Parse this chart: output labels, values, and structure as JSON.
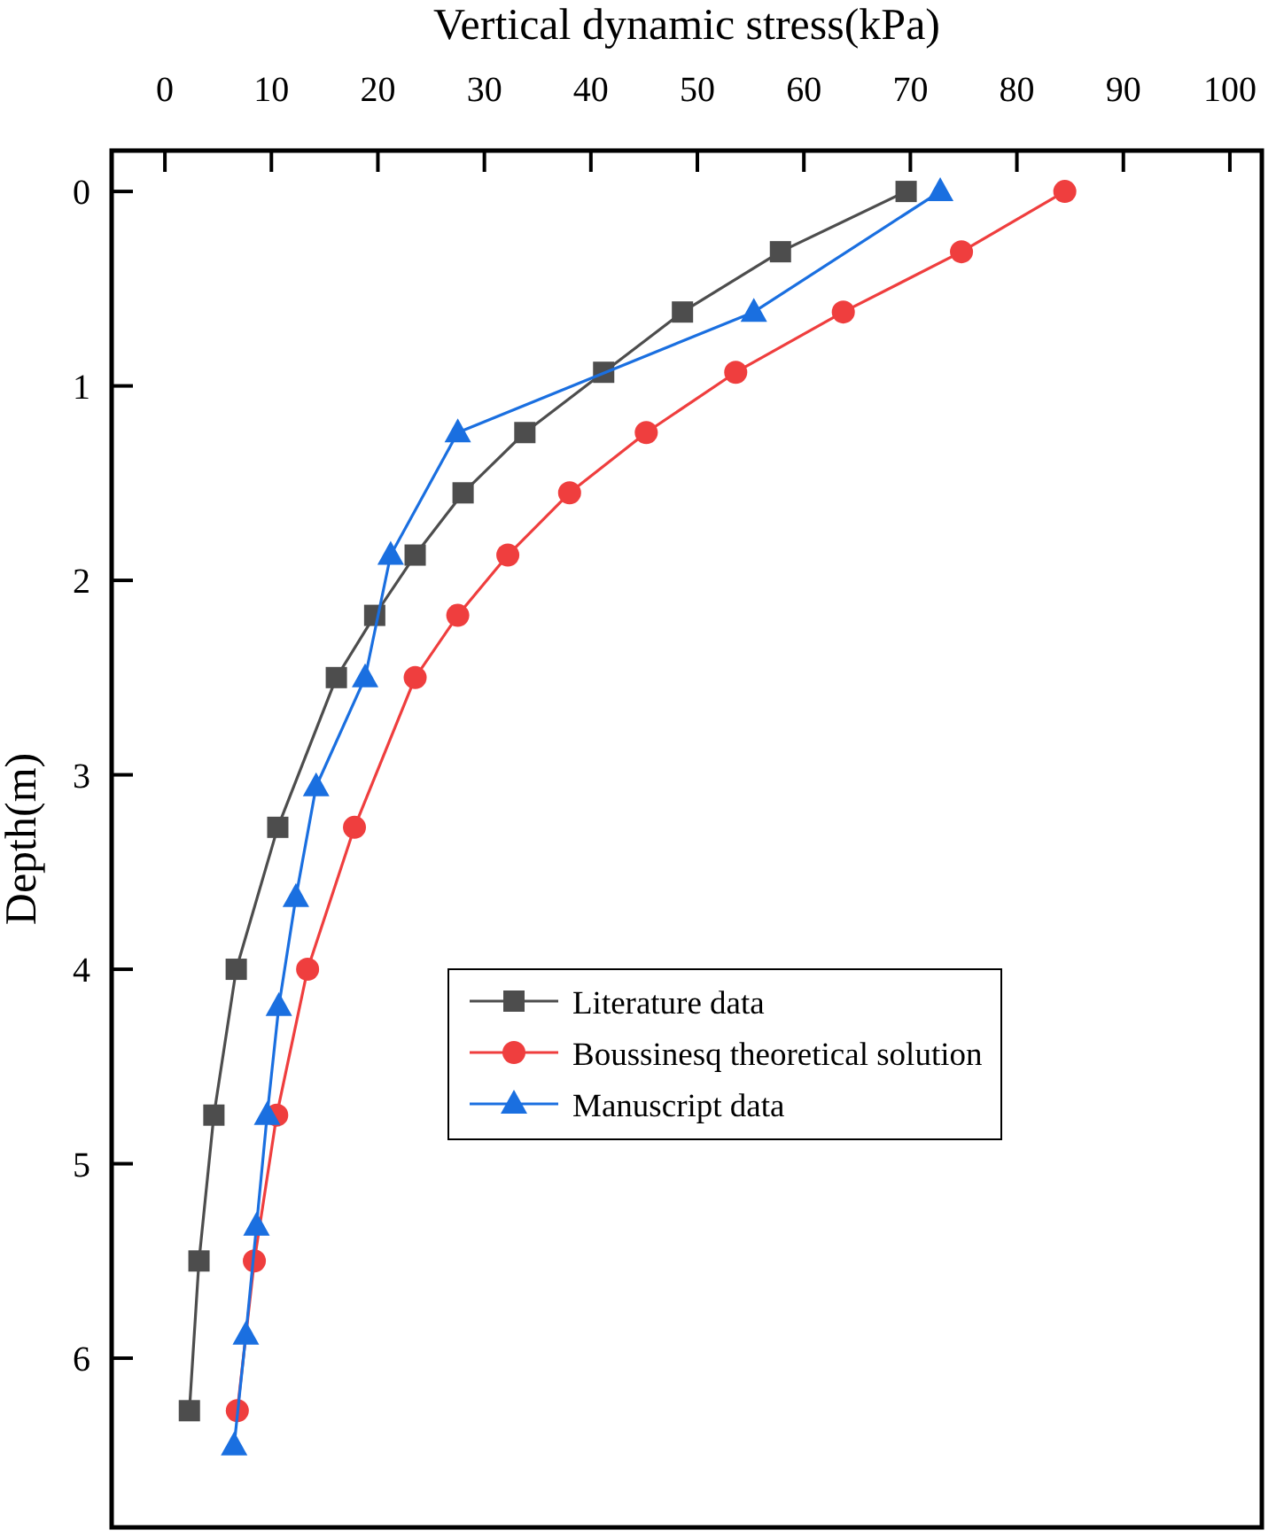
{
  "chart_data": {
    "type": "line",
    "xlabel": "Vertical dynamic stress(kPa)",
    "ylabel": "Depth(m)",
    "xlim": [
      -5,
      103
    ],
    "xticks": [
      0,
      10,
      20,
      30,
      40,
      50,
      60,
      70,
      80,
      90,
      100
    ],
    "ylim": [
      6.87,
      -0.21
    ],
    "yticks": [
      0,
      1,
      2,
      3,
      4,
      5,
      6
    ],
    "grid": false,
    "legend": "right",
    "series": [
      {
        "name": "Literature data",
        "color": "#4d4d4d",
        "marker": "square",
        "x": [
          69.6,
          57.8,
          48.6,
          41.2,
          33.8,
          28.0,
          23.5,
          19.7,
          16.1,
          10.6,
          6.7,
          4.6,
          3.2,
          2.3
        ],
        "values": [
          0,
          0.31,
          0.62,
          0.93,
          1.24,
          1.55,
          1.87,
          2.18,
          2.5,
          3.27,
          4.0,
          4.75,
          5.5,
          6.27
        ]
      },
      {
        "name": "Boussinesq theoretical solution",
        "color": "#ef3e3e",
        "marker": "circle",
        "x": [
          84.5,
          74.8,
          63.7,
          53.6,
          45.2,
          38.0,
          32.2,
          27.5,
          23.5,
          17.8,
          13.4,
          10.5,
          8.4,
          6.8
        ],
        "values": [
          0,
          0.31,
          0.62,
          0.93,
          1.24,
          1.55,
          1.87,
          2.18,
          2.5,
          3.27,
          4.0,
          4.75,
          5.5,
          6.27
        ]
      },
      {
        "name": "Manuscript data",
        "color": "#1a6fe0",
        "marker": "triangle",
        "x": [
          72.8,
          55.3,
          27.5,
          21.2,
          18.8,
          14.2,
          12.3,
          10.7,
          9.6,
          8.6,
          7.6,
          6.5
        ],
        "values": [
          0,
          0.62,
          1.24,
          1.87,
          2.5,
          3.06,
          3.63,
          4.19,
          4.75,
          5.32,
          5.88,
          6.45
        ]
      }
    ]
  }
}
